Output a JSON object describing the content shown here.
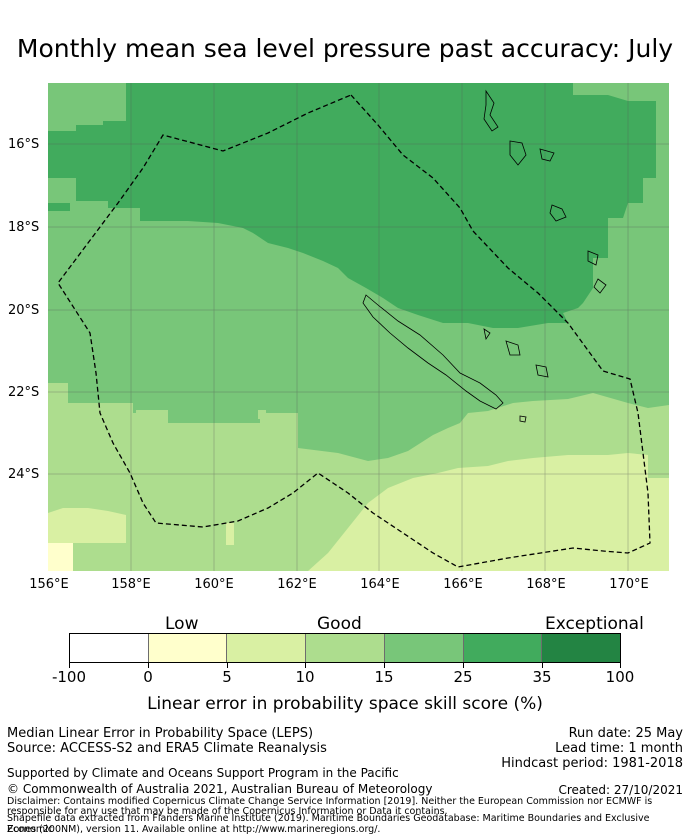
{
  "title": "Monthly mean sea level pressure past accuracy: July",
  "map": {
    "lat_labels": [
      "16°S",
      "18°S",
      "20°S",
      "22°S",
      "24°S"
    ],
    "lon_labels": [
      "156°E",
      "158°E",
      "160°E",
      "162°E",
      "164°E",
      "166°E",
      "168°E",
      "170°E"
    ],
    "colors": {
      "c1": "#ffffcc",
      "c2": "#d9f0a3",
      "c3": "#addd8e",
      "c4": "#78c679",
      "c5": "#41ab5d",
      "c6": "#238443"
    }
  },
  "legend": {
    "categories": [
      "Low",
      "Good",
      "Exceptional"
    ],
    "tick_labels": [
      "-100",
      "0",
      "5",
      "10",
      "15",
      "25",
      "35",
      "100"
    ],
    "colors": [
      "#ffffff",
      "#ffffcc",
      "#d9f0a3",
      "#addd8e",
      "#78c679",
      "#41ab5d",
      "#238443"
    ],
    "label": "Linear error in probability space skill score (%)"
  },
  "info": {
    "line1": "Median Linear Error in Probability Space (LEPS)",
    "line2": "Source: ACCESS-S2 and ERA5 Climate Reanalysis",
    "run_date": "Run date: 25 May",
    "lead_time": "Lead time: 1 month",
    "hindcast": "Hindcast period: 1981-2018",
    "support": "Supported by Climate and Oceans Support Program in the Pacific",
    "copyright": "© Commonwealth of Australia 2021, Australian Bureau of Meteorology",
    "created": "Created: 27/10/2021",
    "disclaimer1": "Disclaimer: Contains modified Copernicus Climate Change Service Information [2019]. Neither the European Commission nor ECMWF is",
    "disclaimer2": "responsible for any use that may be made of the Copernicus Information or Data it contains.",
    "disclaimer3": "Shapefile data extracted from Flanders Marine Institute (2019). Maritime Boundaries Geodatabase: Maritime Boundaries and Exclusive Economic",
    "disclaimer4": "Zones (200NM), version 11. Available online at http://www.marineregions.org/."
  }
}
